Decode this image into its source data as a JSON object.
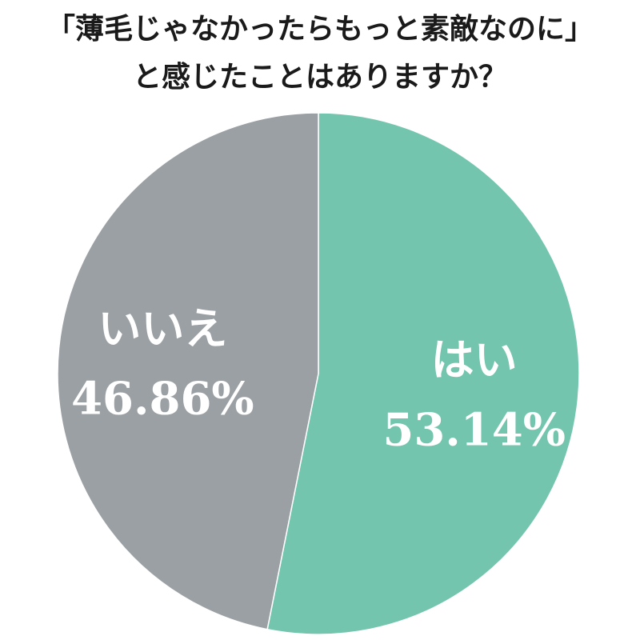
{
  "title_lines": [
    "「薄毛じゃなかったらもっと素敵なのに」",
    "と感じたことはありますか？"
  ],
  "chart_data": {
    "type": "pie",
    "title": "「薄毛じゃなかったらもっと素敵なのに」と感じたことはありますか？",
    "slices": [
      {
        "label": "はい",
        "value": 53.14,
        "display": "53.14%",
        "color": "#74c5ae"
      },
      {
        "label": "いいえ",
        "value": 46.86,
        "display": "46.86%",
        "color": "#9ba0a4"
      }
    ],
    "start": "top",
    "direction": "clockwise",
    "edge_color": "#ffffff"
  }
}
